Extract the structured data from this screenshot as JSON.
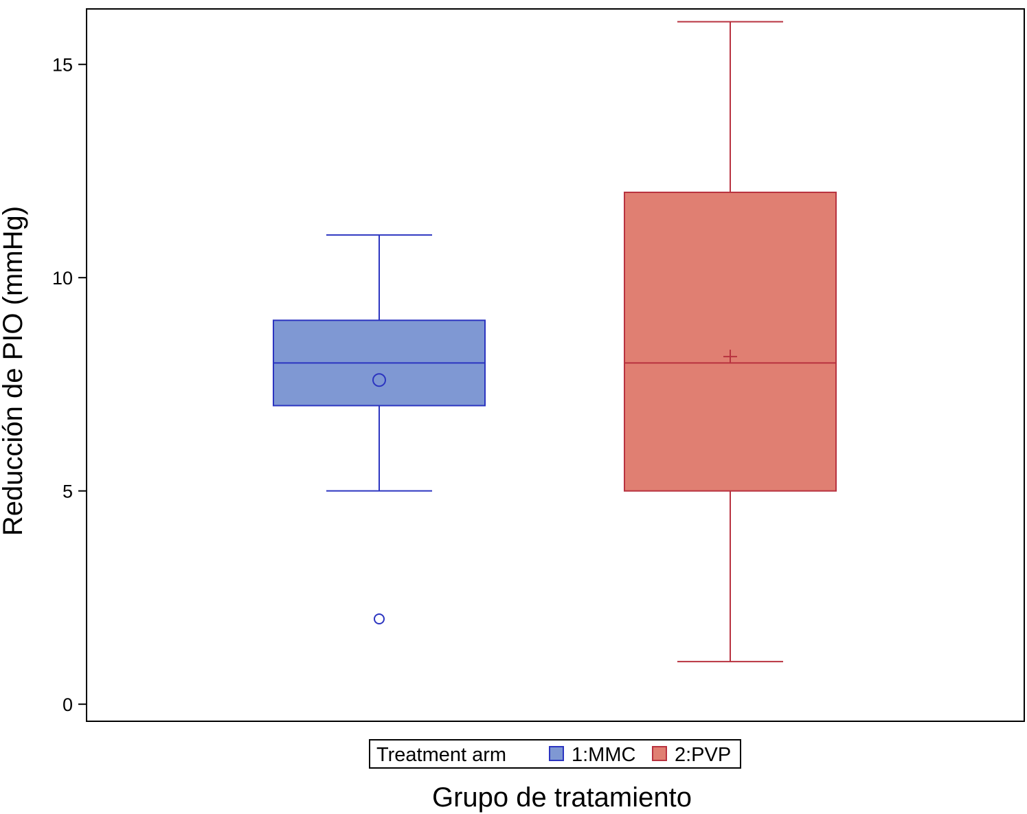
{
  "chart_data": {
    "type": "box",
    "xlabel": "Grupo de tratamiento",
    "ylabel": "Reducción de PIO (mmHg)",
    "ylim": [
      -0.4,
      16.3
    ],
    "yticks": [
      0,
      5,
      10,
      15
    ],
    "grid": false,
    "legend": {
      "title": "Treatment arm",
      "placement": "bottom-center",
      "entries": [
        "1:MMC",
        "2:PVP"
      ]
    },
    "series": [
      {
        "name": "1:MMC",
        "color_fill": "#7f98d3",
        "color_line": "#2b34c0",
        "mean_marker": "circle",
        "whisker_low": 5,
        "q1": 7,
        "median": 8,
        "q3": 9,
        "whisker_high": 11,
        "mean": 7.6,
        "outliers": [
          2
        ]
      },
      {
        "name": "2:PVP",
        "color_fill": "#e07f72",
        "color_line": "#b8323f",
        "mean_marker": "plus",
        "whisker_low": 1,
        "q1": 5,
        "median": 8,
        "q3": 12,
        "whisker_high": 16,
        "mean": 8.15,
        "outliers": []
      }
    ]
  }
}
